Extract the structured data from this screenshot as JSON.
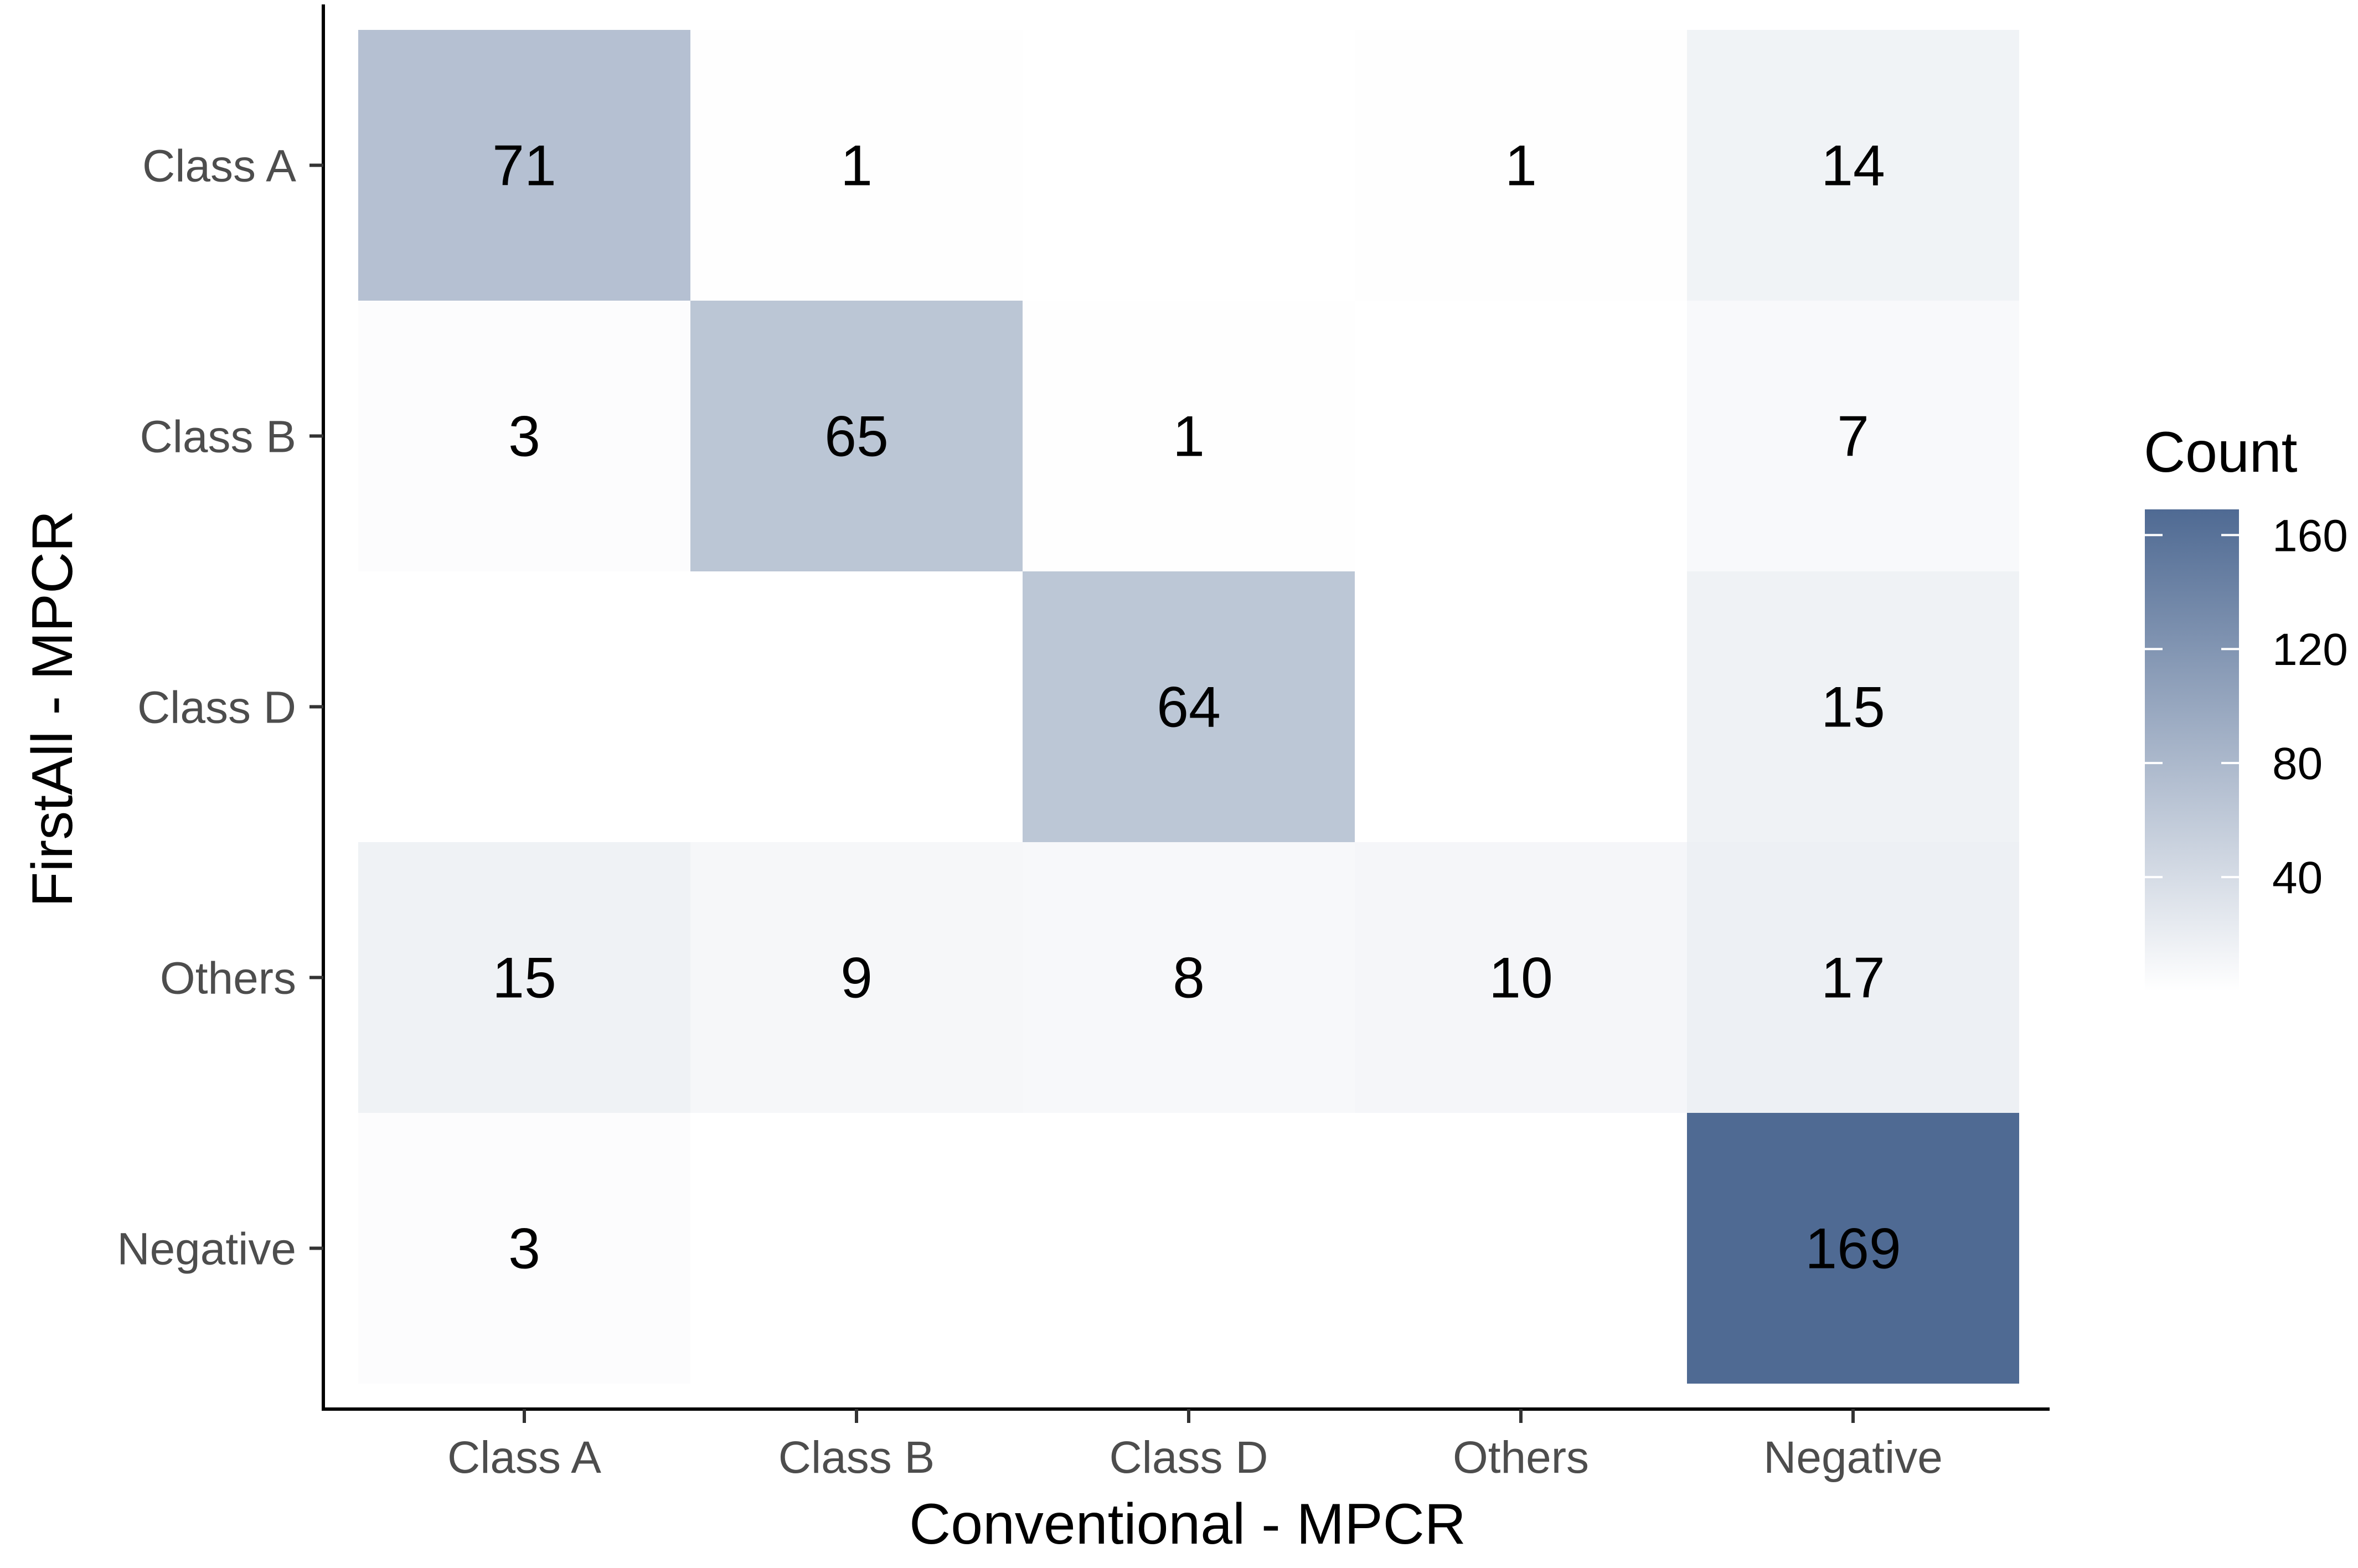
{
  "chart_data": {
    "type": "heatmap",
    "title": "",
    "xlabel": "Conventional - MPCR",
    "ylabel": "FirstAll - MPCR",
    "x_categories": [
      "Class A",
      "Class B",
      "Class D",
      "Others",
      "Negative"
    ],
    "y_categories": [
      "Class A",
      "Class B",
      "Class D",
      "Others",
      "Negative"
    ],
    "cells": [
      {
        "x": "Class A",
        "y": "Class A",
        "value": 71
      },
      {
        "x": "Class B",
        "y": "Class A",
        "value": 1
      },
      {
        "x": "Others",
        "y": "Class A",
        "value": 1
      },
      {
        "x": "Negative",
        "y": "Class A",
        "value": 14
      },
      {
        "x": "Class A",
        "y": "Class B",
        "value": 3
      },
      {
        "x": "Class B",
        "y": "Class B",
        "value": 65
      },
      {
        "x": "Class D",
        "y": "Class B",
        "value": 1
      },
      {
        "x": "Negative",
        "y": "Class B",
        "value": 7
      },
      {
        "x": "Class D",
        "y": "Class D",
        "value": 64
      },
      {
        "x": "Negative",
        "y": "Class D",
        "value": 15
      },
      {
        "x": "Class A",
        "y": "Others",
        "value": 15
      },
      {
        "x": "Class B",
        "y": "Others",
        "value": 9
      },
      {
        "x": "Class D",
        "y": "Others",
        "value": 8
      },
      {
        "x": "Others",
        "y": "Others",
        "value": 10
      },
      {
        "x": "Negative",
        "y": "Others",
        "value": 17
      },
      {
        "x": "Class A",
        "y": "Negative",
        "value": 3
      },
      {
        "x": "Negative",
        "y": "Negative",
        "value": 169
      }
    ],
    "legend": {
      "title": "Count",
      "breaks": [
        "40",
        "80",
        "120",
        "160"
      ],
      "placement": "right"
    },
    "color_scale": {
      "low_value": 0,
      "high_value": 169,
      "low_color": "#ffffff",
      "high_color": "#4f6a93"
    },
    "grid": false
  }
}
